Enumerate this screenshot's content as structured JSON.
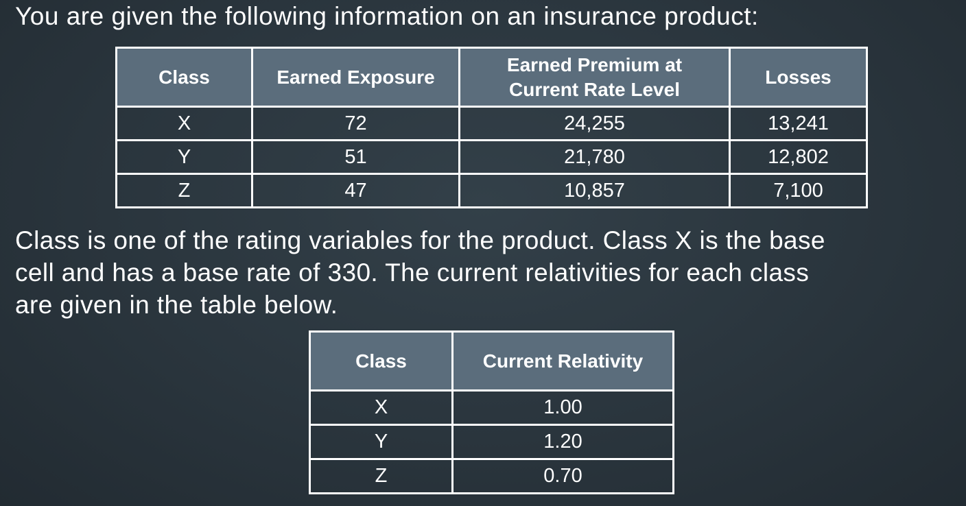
{
  "intro_text": "You are given the following information on an insurance product:",
  "table1": {
    "headers": {
      "class": "Class",
      "exposure": "Earned Exposure",
      "premium_line1": "Earned Premium at",
      "premium_line2": "Current Rate Level",
      "losses": "Losses"
    },
    "rows": [
      {
        "class": "X",
        "exposure": "72",
        "premium": "24,255",
        "losses": "13,241"
      },
      {
        "class": "Y",
        "exposure": "51",
        "premium": "21,780",
        "losses": "12,802"
      },
      {
        "class": "Z",
        "exposure": "47",
        "premium": "10,857",
        "losses": "7,100"
      }
    ]
  },
  "paragraph": {
    "line1": "Class is one of the rating variables for the product. Class X is the base",
    "line2": "cell and has a base rate of 330. The current relativities for each class",
    "line3": "are given in the table below."
  },
  "table2": {
    "headers": {
      "class": "Class",
      "relativity": "Current Relativity"
    },
    "rows": [
      {
        "class": "X",
        "relativity": "1.00"
      },
      {
        "class": "Y",
        "relativity": "1.20"
      },
      {
        "class": "Z",
        "relativity": "0.70"
      }
    ]
  }
}
